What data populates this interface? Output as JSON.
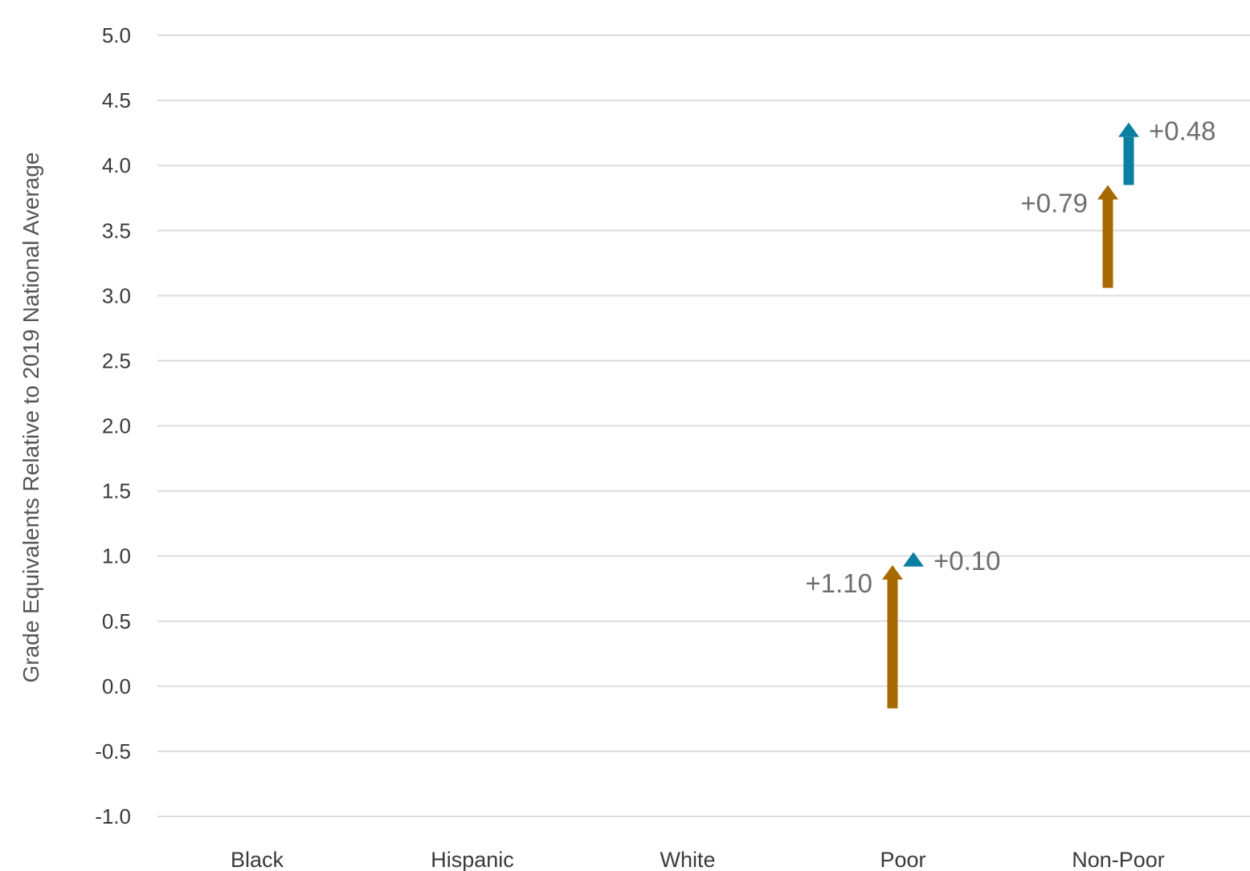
{
  "chart_data": {
    "type": "arrow",
    "ylabel": "Grade Equivalents Relative to 2019 National Average",
    "ylim": [
      -1.0,
      5.0
    ],
    "yticks": [
      "5.0",
      "4.5",
      "4.0",
      "3.5",
      "3.0",
      "2.5",
      "2.0",
      "1.5",
      "1.0",
      "0.5",
      "0.0",
      "-0.5",
      "-1.0"
    ],
    "categories": [
      "Black",
      "Hispanic",
      "White",
      "Poor",
      "Non-Poor"
    ],
    "grid": true,
    "colors": {
      "series1": "#a66a00",
      "series2": "#0a7fa0"
    },
    "arrows": [
      {
        "category": "Poor",
        "series": 1,
        "start": -0.17,
        "end": 0.93,
        "label": "+1.10",
        "label_side": "left"
      },
      {
        "category": "Poor",
        "series": 2,
        "start": 0.93,
        "end": 1.03,
        "label": "+0.10",
        "label_side": "right"
      },
      {
        "category": "Non-Poor",
        "series": 1,
        "start": 3.06,
        "end": 3.85,
        "label": "+0.79",
        "label_side": "left"
      },
      {
        "category": "Non-Poor",
        "series": 2,
        "start": 3.85,
        "end": 4.33,
        "label": "+0.48",
        "label_side": "right"
      }
    ]
  }
}
